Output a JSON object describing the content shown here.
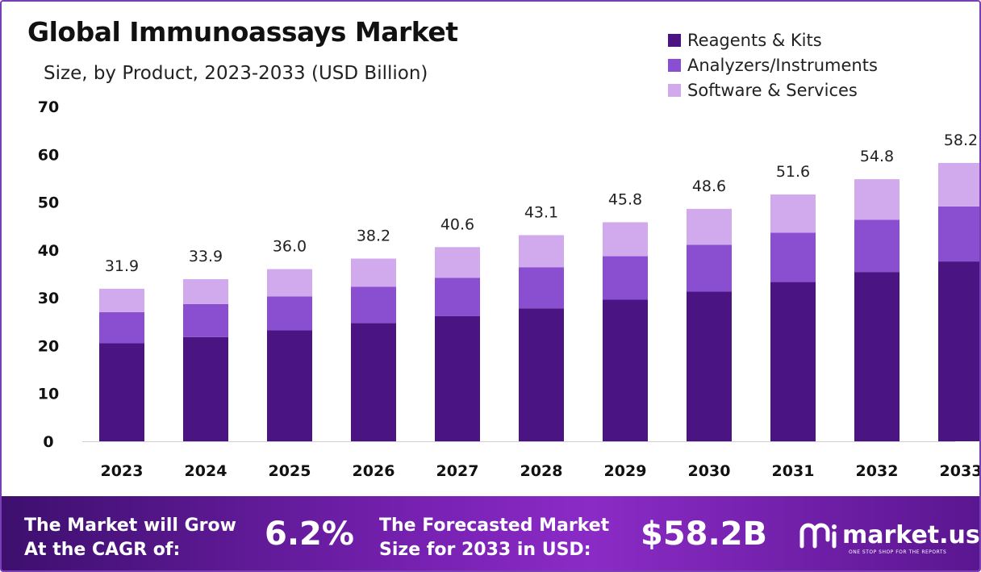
{
  "chart_data": {
    "type": "bar",
    "stacked": true,
    "title": "Global Immunoassays Market",
    "subtitle": "Size, by Product, 2023-2033 (USD Billion)",
    "categories": [
      "2023",
      "2024",
      "2025",
      "2026",
      "2027",
      "2028",
      "2029",
      "2030",
      "2031",
      "2032",
      "2033"
    ],
    "series": [
      {
        "name": "Reagents & Kits",
        "color": "#4a1483",
        "values": [
          20.5,
          21.8,
          23.2,
          24.7,
          26.2,
          27.8,
          29.6,
          31.3,
          33.3,
          35.4,
          37.6
        ]
      },
      {
        "name": "Analyzers/Instruments",
        "color": "#8a4fd1",
        "values": [
          6.5,
          6.9,
          7.1,
          7.6,
          8.0,
          8.6,
          9.1,
          9.8,
          10.3,
          10.9,
          11.5
        ]
      },
      {
        "name": "Software & Services",
        "color": "#d1aaee",
        "values": [
          4.9,
          5.2,
          5.7,
          5.9,
          6.4,
          6.7,
          7.1,
          7.5,
          8.0,
          8.5,
          9.1
        ]
      }
    ],
    "totals": [
      "31.9",
      "33.9",
      "36.0",
      "38.2",
      "40.6",
      "43.1",
      "45.8",
      "48.6",
      "51.6",
      "54.8",
      "58.2"
    ],
    "ylim": [
      0,
      70
    ],
    "yticks": [
      0,
      10,
      20,
      30,
      40,
      50,
      60,
      70
    ],
    "xlabel": "",
    "ylabel": "",
    "grid": false,
    "legend_position": "top-right"
  },
  "footer": {
    "cagr_label_line1": "The Market will Grow",
    "cagr_label_line2": "At the CAGR of:",
    "cagr_value": "6.2%",
    "forecast_label_line1": "The Forecasted Market",
    "forecast_label_line2": "Size for 2033 in USD:",
    "forecast_value": "$58.2B",
    "brand_name": "market.us",
    "brand_tagline": "ONE STOP SHOP FOR THE REPORTS"
  }
}
